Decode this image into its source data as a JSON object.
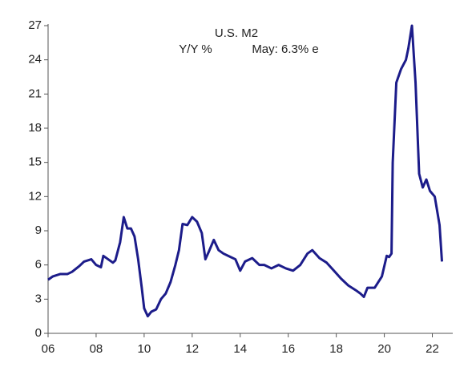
{
  "chart_data": {
    "type": "line",
    "title": "U.S. M2",
    "subtitle": "Y/Y %",
    "annotation": "May: 6.3% e",
    "x": [
      2006.0,
      2006.2,
      2006.5,
      2006.8,
      2007.0,
      2007.3,
      2007.5,
      2007.8,
      2008.0,
      2008.2,
      2008.3,
      2008.5,
      2008.7,
      2008.8,
      2009.0,
      2009.15,
      2009.3,
      2009.45,
      2009.6,
      2009.75,
      2009.9,
      2010.0,
      2010.15,
      2010.3,
      2010.5,
      2010.7,
      2010.9,
      2011.1,
      2011.3,
      2011.45,
      2011.6,
      2011.8,
      2012.0,
      2012.2,
      2012.4,
      2012.55,
      2012.7,
      2012.9,
      2013.1,
      2013.3,
      2013.6,
      2013.8,
      2014.0,
      2014.2,
      2014.5,
      2014.8,
      2015.0,
      2015.3,
      2015.6,
      2015.9,
      2016.2,
      2016.5,
      2016.8,
      2017.0,
      2017.3,
      2017.6,
      2017.9,
      2018.2,
      2018.5,
      2018.8,
      2019.0,
      2019.15,
      2019.3,
      2019.6,
      2019.9,
      2020.1,
      2020.2,
      2020.3,
      2020.35,
      2020.5,
      2020.7,
      2020.9,
      2021.0,
      2021.15,
      2021.3,
      2021.45,
      2021.6,
      2021.75,
      2021.9,
      2022.1,
      2022.3,
      2022.4
    ],
    "series": [
      {
        "color": "#1c1c8a",
        "values": [
          4.7,
          5.0,
          5.2,
          5.2,
          5.4,
          5.9,
          6.3,
          6.5,
          6.0,
          5.8,
          6.8,
          6.5,
          6.2,
          6.4,
          8.0,
          10.2,
          9.2,
          9.2,
          8.5,
          6.5,
          4.0,
          2.2,
          1.5,
          1.9,
          2.1,
          3.0,
          3.5,
          4.5,
          6.0,
          7.3,
          9.6,
          9.5,
          10.2,
          9.8,
          8.8,
          6.5,
          7.2,
          8.2,
          7.3,
          7.0,
          6.7,
          6.5,
          5.5,
          6.3,
          6.6,
          6.0,
          6.0,
          5.7,
          6.0,
          5.7,
          5.5,
          6.0,
          7.0,
          7.3,
          6.6,
          6.2,
          5.5,
          4.8,
          4.2,
          3.8,
          3.5,
          3.2,
          4.0,
          4.0,
          5.0,
          6.8,
          6.7,
          7.0,
          15.0,
          22.0,
          23.2,
          24.0,
          25.0,
          27.0,
          22.0,
          14.0,
          12.8,
          13.5,
          12.5,
          12.0,
          9.5,
          6.3
        ]
      }
    ],
    "xlim": [
      2006,
      2022.85
    ],
    "ylim": [
      0,
      27
    ],
    "xticks": [
      {
        "value": 2006,
        "label": "06"
      },
      {
        "value": 2008,
        "label": "08"
      },
      {
        "value": 2010,
        "label": "10"
      },
      {
        "value": 2012,
        "label": "12"
      },
      {
        "value": 2014,
        "label": "14"
      },
      {
        "value": 2016,
        "label": "16"
      },
      {
        "value": 2018,
        "label": "18"
      },
      {
        "value": 2020,
        "label": "20"
      },
      {
        "value": 2022,
        "label": "22"
      }
    ],
    "yticks": [
      0,
      3,
      6,
      9,
      12,
      15,
      18,
      21,
      24,
      27
    ]
  }
}
